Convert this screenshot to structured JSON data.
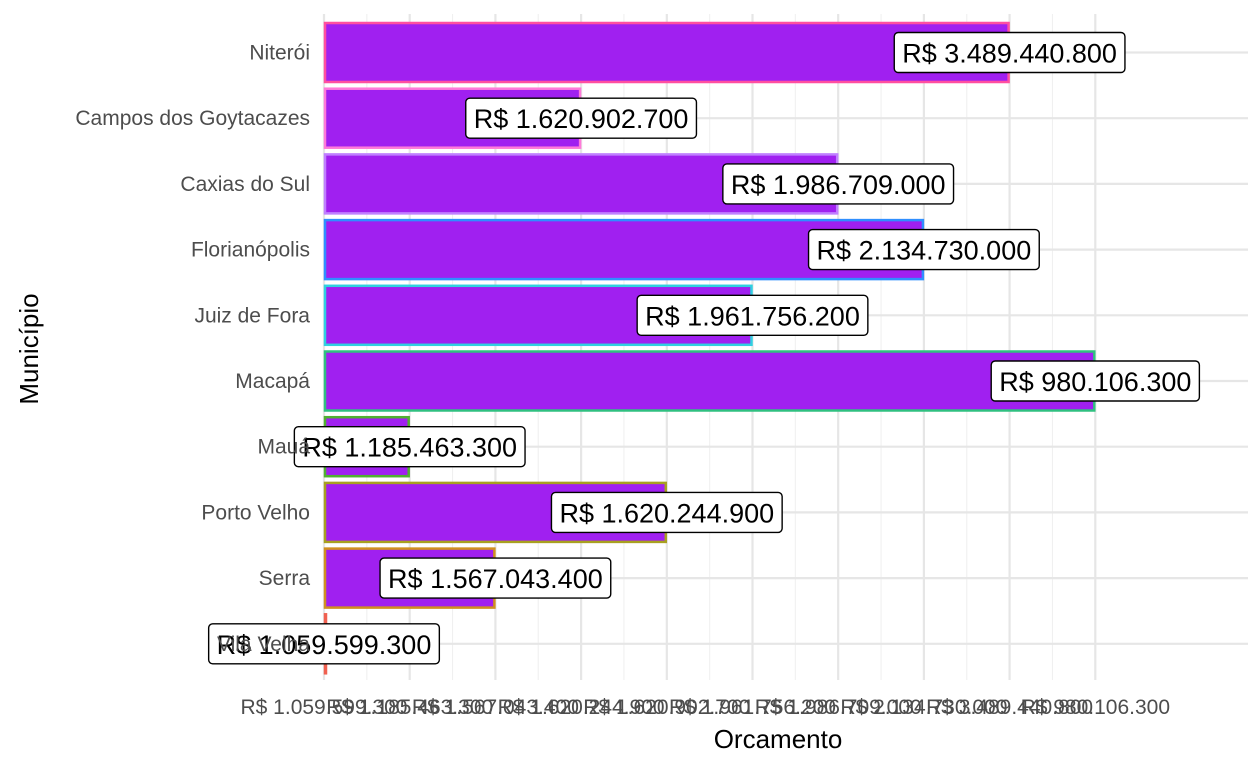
{
  "chart_data": {
    "type": "bar",
    "orientation": "horizontal",
    "title": "",
    "xlabel": "Orcamento",
    "ylabel": "Município",
    "categories": [
      "Niterói",
      "Campos dos Goytacazes",
      "Caxias do Sul",
      "Florianópolis",
      "Juiz de Fora",
      "Macapá",
      "Mauá",
      "Porto Velho",
      "Serra",
      "Vila Velha"
    ],
    "values": [
      3489440800,
      1620902700,
      1986709000,
      2134730000,
      1961756200,
      980106300,
      1185463300,
      1620244900,
      1567043400,
      1059599300
    ],
    "value_labels": [
      "R$ 3.489.440.800",
      "R$ 1.620.902.700",
      "R$ 1.986.709.000",
      "R$ 2.134.730.000",
      "R$ 1.961.756.200",
      "R$ 980.106.300",
      "R$ 1.185.463.300",
      "R$ 1.620.244.900",
      "R$ 1.567.043.400",
      "R$ 1.059.599.300"
    ],
    "bar_rank": [
      9,
      4,
      7,
      8,
      6,
      10,
      2,
      5,
      3,
      1
    ],
    "x_tick_labels": [
      "R$ 1.059.599.300",
      "R$ 1.185.463.300",
      "R$ 1.567.043.400",
      "R$ 1.620.244.900",
      "R$ 1.620.902.700",
      "R$ 1.961.756.200",
      "R$ 1.986.709.000",
      "R$ 2.134.730.000",
      "R$ 3.489.440.800",
      "R$ 980.106.300"
    ],
    "x_scale": "discrete (labels sorted as text)",
    "grid": true,
    "legend": "none",
    "fill_color": "#A020F0",
    "outline_colors": [
      "#FF4FA0",
      "#FF7AD9",
      "#C080FF",
      "#2F8FFF",
      "#30D0E0",
      "#30C080",
      "#50B030",
      "#A8A020",
      "#D09020",
      "#F06050"
    ]
  }
}
